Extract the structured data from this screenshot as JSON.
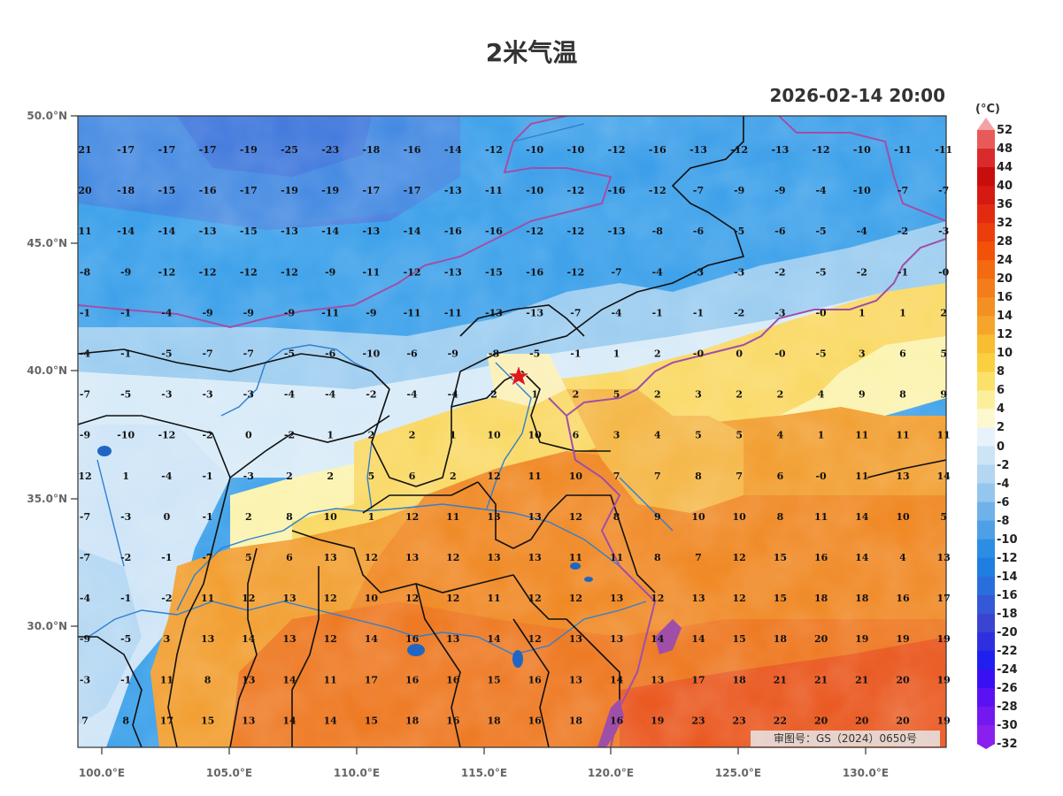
{
  "title": "2米气温",
  "datetime": "2026-02-14 20:00",
  "colorbar": {
    "unit": "(°C)",
    "labels": [
      "52",
      "48",
      "44",
      "40",
      "36",
      "32",
      "28",
      "24",
      "20",
      "16",
      "14",
      "12",
      "10",
      "8",
      "6",
      "4",
      "2",
      "0",
      "-2",
      "-4",
      "-6",
      "-8",
      "-10",
      "-12",
      "-14",
      "-16",
      "-18",
      "-20",
      "-22",
      "-24",
      "-26",
      "-28",
      "-30",
      "-32"
    ],
    "colors": [
      "#f2a2a2",
      "#e85a5a",
      "#d92b2b",
      "#c80d0d",
      "#d61a12",
      "#e22a10",
      "#ec3d0c",
      "#f25208",
      "#f46a10",
      "#f27d1a",
      "#f48f22",
      "#f5a52a",
      "#f8bd30",
      "#fad040",
      "#fbe06a",
      "#fcef9c",
      "#fdf8d0",
      "#e8f2fa",
      "#cde4f5",
      "#b3d6f1",
      "#94c6ee",
      "#6fb2ea",
      "#4ea0e6",
      "#2c8ee3",
      "#1f7ee0",
      "#2a6edc",
      "#3458d6",
      "#3a44d2",
      "#2e30e0",
      "#1f1ff0",
      "#3a10f2",
      "#5a12f2",
      "#7418f0",
      "#8a20ee"
    ]
  },
  "axes": {
    "lat_labels": [
      "50.0°N",
      "45.0°N",
      "40.0°N",
      "35.0°N",
      "30.0°N"
    ],
    "lon_labels": [
      "100.0°E",
      "105.0°E",
      "110.0°E",
      "115.0°E",
      "120.0°E",
      "125.0°E",
      "130.0°E"
    ]
  },
  "stamp": "审图号：GS（2024）0650号",
  "grid_values": [
    [
      "21",
      "-17",
      "-17",
      "-17",
      "-19",
      "-25",
      "-23",
      "-18",
      "-16",
      "-14",
      "-12",
      "-10",
      "-10",
      "-12",
      "-16",
      "-13",
      "-12",
      "-13",
      "-12",
      "-10",
      "-11",
      "-11"
    ],
    [
      "20",
      "-18",
      "-15",
      "-16",
      "-17",
      "-19",
      "-19",
      "-17",
      "-17",
      "-13",
      "-11",
      "-10",
      "-12",
      "-16",
      "-12",
      "-7",
      "-9",
      "-9",
      "-4",
      "-10",
      "-7",
      "-7"
    ],
    [
      "11",
      "-14",
      "-14",
      "-13",
      "-15",
      "-13",
      "-14",
      "-13",
      "-14",
      "-16",
      "-16",
      "-12",
      "-12",
      "-13",
      "-8",
      "-6",
      "-5",
      "-6",
      "-5",
      "-4",
      "-2",
      "-3"
    ],
    [
      "-8",
      "-9",
      "-12",
      "-12",
      "-12",
      "-12",
      "-9",
      "-11",
      "-12",
      "-13",
      "-15",
      "-16",
      "-12",
      "-7",
      "-4",
      "-3",
      "-3",
      "-2",
      "-5",
      "-2",
      "-1",
      "-0"
    ],
    [
      "-1",
      "-1",
      "-4",
      "-9",
      "-9",
      "-9",
      "-11",
      "-9",
      "-11",
      "-11",
      "-13",
      "-13",
      "-7",
      "-4",
      "-1",
      "-1",
      "-2",
      "-3",
      "-0",
      "1",
      "1",
      "2"
    ],
    [
      "-4",
      "-1",
      "-5",
      "-7",
      "-7",
      "-5",
      "-6",
      "-10",
      "-6",
      "-9",
      "-8",
      "-5",
      "-1",
      "1",
      "2",
      "-0",
      "0",
      "-0",
      "-5",
      "3",
      "6",
      "5"
    ],
    [
      "-7",
      "-5",
      "-3",
      "-3",
      "-3",
      "-4",
      "-4",
      "-2",
      "-4",
      "-4",
      "2",
      "1",
      "2",
      "5",
      "2",
      "3",
      "2",
      "2",
      "4",
      "9",
      "8",
      "9"
    ],
    [
      "-9",
      "-10",
      "-12",
      "-2",
      "0",
      "-2",
      "1",
      "2",
      "2",
      "1",
      "10",
      "10",
      "6",
      "3",
      "4",
      "5",
      "5",
      "4",
      "1",
      "11",
      "11",
      "11"
    ],
    [
      "12",
      "1",
      "-4",
      "-1",
      "-3",
      "2",
      "2",
      "5",
      "6",
      "2",
      "12",
      "11",
      "10",
      "7",
      "7",
      "8",
      "7",
      "6",
      "-0",
      "11",
      "13",
      "14"
    ],
    [
      "-7",
      "-3",
      "0",
      "-1",
      "2",
      "8",
      "10",
      "1",
      "12",
      "11",
      "13",
      "13",
      "12",
      "8",
      "9",
      "10",
      "10",
      "8",
      "11",
      "14",
      "10",
      "5"
    ],
    [
      "-7",
      "-2",
      "-1",
      "-7",
      "5",
      "6",
      "13",
      "12",
      "13",
      "12",
      "13",
      "13",
      "11",
      "11",
      "8",
      "7",
      "12",
      "15",
      "16",
      "14",
      "4",
      "13"
    ],
    [
      "-4",
      "-1",
      "-2",
      "11",
      "12",
      "13",
      "12",
      "10",
      "12",
      "12",
      "11",
      "12",
      "12",
      "13",
      "12",
      "13",
      "12",
      "15",
      "18",
      "18",
      "16",
      "17"
    ],
    [
      "-9",
      "-5",
      "3",
      "13",
      "14",
      "13",
      "12",
      "14",
      "16",
      "13",
      "14",
      "12",
      "13",
      "13",
      "14",
      "14",
      "15",
      "18",
      "20",
      "19",
      "19",
      "19"
    ],
    [
      "-3",
      "-1",
      "11",
      "8",
      "13",
      "14",
      "11",
      "17",
      "16",
      "16",
      "15",
      "16",
      "13",
      "14",
      "13",
      "17",
      "18",
      "21",
      "21",
      "21",
      "20",
      "19"
    ],
    [
      "7",
      "8",
      "17",
      "15",
      "13",
      "14",
      "14",
      "15",
      "18",
      "16",
      "18",
      "16",
      "18",
      "16",
      "19",
      "23",
      "23",
      "22",
      "20",
      "20",
      "20",
      "19"
    ]
  ]
}
